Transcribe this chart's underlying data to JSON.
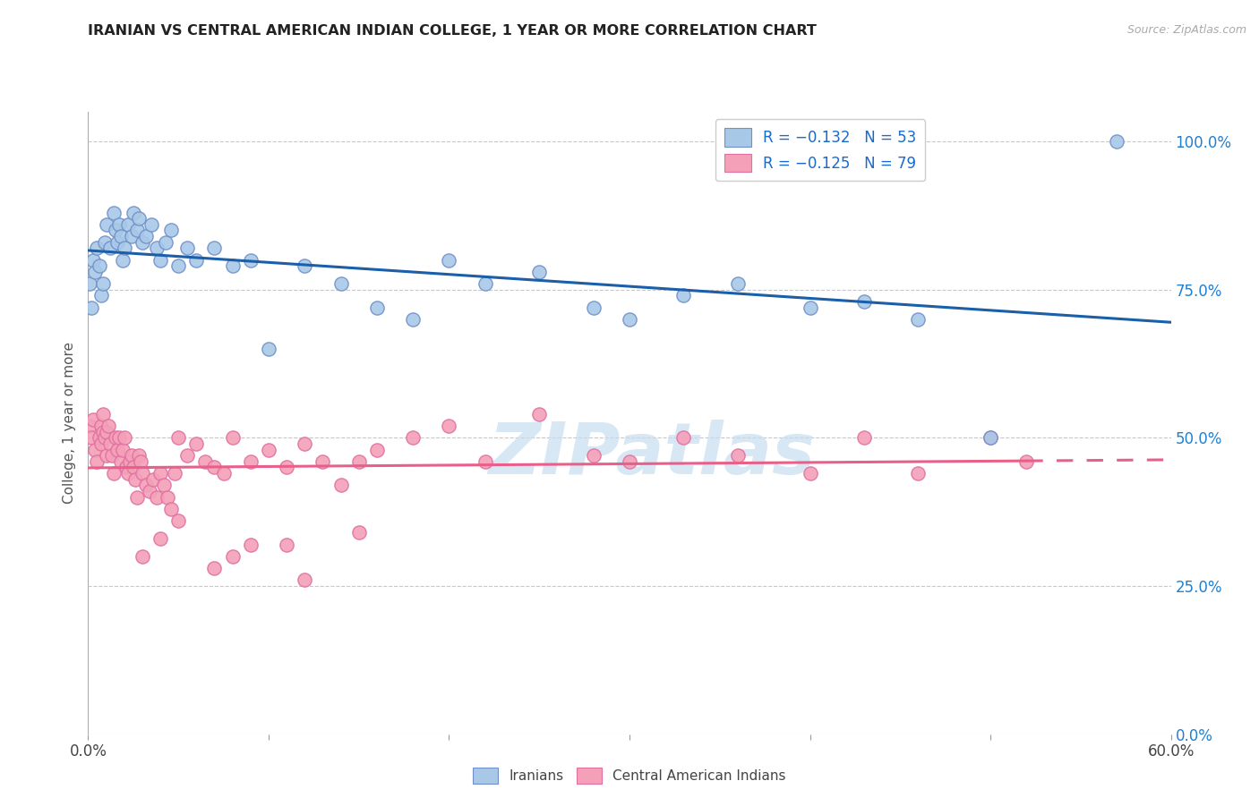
{
  "title": "IRANIAN VS CENTRAL AMERICAN INDIAN COLLEGE, 1 YEAR OR MORE CORRELATION CHART",
  "source": "Source: ZipAtlas.com",
  "ylabel": "College, 1 year or more",
  "yticks": [
    "0.0%",
    "25.0%",
    "50.0%",
    "75.0%",
    "100.0%"
  ],
  "ytick_vals": [
    0.0,
    0.25,
    0.5,
    0.75,
    1.0
  ],
  "xmin": 0.0,
  "xmax": 0.6,
  "ymin": 0.0,
  "ymax": 1.05,
  "legend_r": [
    "R = −0.132",
    "R = −0.125"
  ],
  "legend_n": [
    "N = 53",
    "N = 79"
  ],
  "blue_color": "#a8c8e8",
  "pink_color": "#f4a0b8",
  "blue_line_color": "#1a5fa8",
  "pink_line_color": "#e8608a",
  "watermark": "ZIPatlas",
  "iranians_x": [
    0.001,
    0.002,
    0.003,
    0.004,
    0.005,
    0.006,
    0.007,
    0.008,
    0.009,
    0.01,
    0.012,
    0.014,
    0.015,
    0.016,
    0.017,
    0.018,
    0.019,
    0.02,
    0.022,
    0.024,
    0.025,
    0.027,
    0.028,
    0.03,
    0.032,
    0.035,
    0.038,
    0.04,
    0.043,
    0.046,
    0.05,
    0.055,
    0.06,
    0.07,
    0.08,
    0.09,
    0.1,
    0.12,
    0.14,
    0.16,
    0.18,
    0.2,
    0.22,
    0.25,
    0.28,
    0.3,
    0.33,
    0.36,
    0.4,
    0.43,
    0.46,
    0.5,
    0.57
  ],
  "iranians_y": [
    0.76,
    0.72,
    0.8,
    0.78,
    0.82,
    0.79,
    0.74,
    0.76,
    0.83,
    0.86,
    0.82,
    0.88,
    0.85,
    0.83,
    0.86,
    0.84,
    0.8,
    0.82,
    0.86,
    0.84,
    0.88,
    0.85,
    0.87,
    0.83,
    0.84,
    0.86,
    0.82,
    0.8,
    0.83,
    0.85,
    0.79,
    0.82,
    0.8,
    0.82,
    0.79,
    0.8,
    0.65,
    0.79,
    0.76,
    0.72,
    0.7,
    0.8,
    0.76,
    0.78,
    0.72,
    0.7,
    0.74,
    0.76,
    0.72,
    0.73,
    0.7,
    0.5,
    1.0
  ],
  "central_x": [
    0.001,
    0.002,
    0.003,
    0.004,
    0.005,
    0.006,
    0.007,
    0.007,
    0.008,
    0.008,
    0.009,
    0.01,
    0.01,
    0.011,
    0.012,
    0.013,
    0.014,
    0.015,
    0.016,
    0.017,
    0.018,
    0.019,
    0.02,
    0.021,
    0.022,
    0.023,
    0.024,
    0.025,
    0.026,
    0.027,
    0.028,
    0.029,
    0.03,
    0.032,
    0.034,
    0.036,
    0.038,
    0.04,
    0.042,
    0.044,
    0.046,
    0.048,
    0.05,
    0.055,
    0.06,
    0.065,
    0.07,
    0.075,
    0.08,
    0.09,
    0.1,
    0.11,
    0.12,
    0.13,
    0.14,
    0.15,
    0.16,
    0.18,
    0.2,
    0.22,
    0.25,
    0.28,
    0.3,
    0.33,
    0.36,
    0.4,
    0.43,
    0.46,
    0.5,
    0.52,
    0.03,
    0.04,
    0.05,
    0.08,
    0.11,
    0.15,
    0.07,
    0.09,
    0.12
  ],
  "central_y": [
    0.52,
    0.5,
    0.53,
    0.48,
    0.46,
    0.5,
    0.52,
    0.49,
    0.54,
    0.51,
    0.5,
    0.47,
    0.51,
    0.52,
    0.49,
    0.47,
    0.44,
    0.5,
    0.48,
    0.5,
    0.46,
    0.48,
    0.5,
    0.45,
    0.44,
    0.46,
    0.47,
    0.45,
    0.43,
    0.4,
    0.47,
    0.46,
    0.44,
    0.42,
    0.41,
    0.43,
    0.4,
    0.44,
    0.42,
    0.4,
    0.38,
    0.44,
    0.5,
    0.47,
    0.49,
    0.46,
    0.45,
    0.44,
    0.5,
    0.46,
    0.48,
    0.45,
    0.49,
    0.46,
    0.42,
    0.46,
    0.48,
    0.5,
    0.52,
    0.46,
    0.54,
    0.47,
    0.46,
    0.5,
    0.47,
    0.44,
    0.5,
    0.44,
    0.5,
    0.46,
    0.3,
    0.33,
    0.36,
    0.3,
    0.32,
    0.34,
    0.28,
    0.32,
    0.26
  ]
}
